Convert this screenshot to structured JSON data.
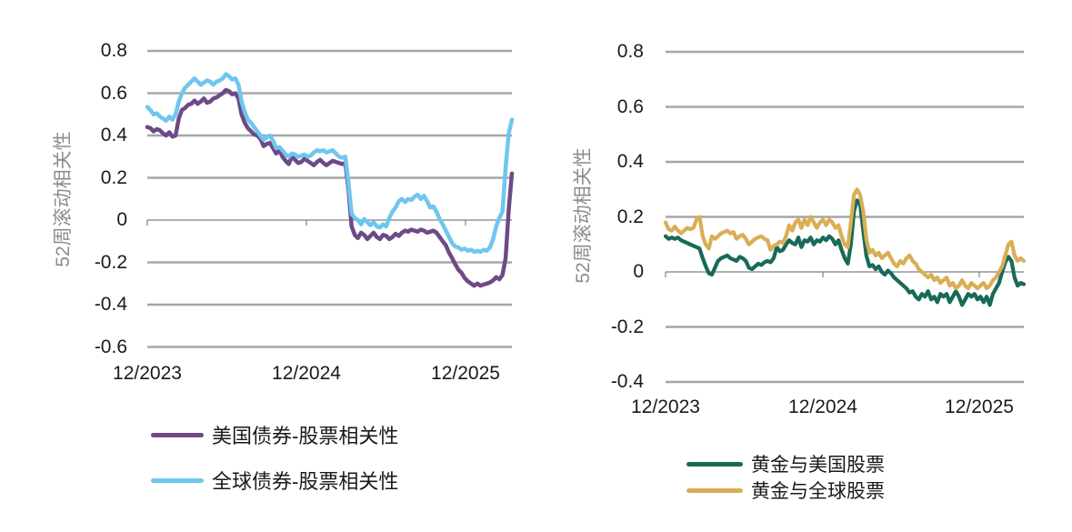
{
  "page": {
    "background": "#ffffff"
  },
  "chart_data": [
    {
      "type": "line",
      "title": "",
      "xlabel": "",
      "ylabel": "52周滚动相关性",
      "x_tick_labels": [
        "12/2023",
        "12/2024",
        "12/2025"
      ],
      "y_tick_labels": [
        "0.8",
        "0.6",
        "0.4",
        "0.2",
        "0",
        "-0.2",
        "-0.4",
        "-0.6"
      ],
      "y_tick_values": [
        0.8,
        0.6,
        0.4,
        0.2,
        0,
        -0.2,
        -0.4,
        -0.6
      ],
      "ylim": [
        -0.7,
        0.9
      ],
      "grid": "horizontal",
      "legend_position": "bottom",
      "grid_color": "#a6a6a6",
      "axis_color": "#7f7f7f",
      "series": [
        {
          "name": "美国债券-股票相关性",
          "color": "#6d4a87",
          "values": [
            0.44,
            0.435,
            0.42,
            0.43,
            0.425,
            0.41,
            0.4,
            0.415,
            0.395,
            0.4,
            0.48,
            0.52,
            0.53,
            0.545,
            0.55,
            0.565,
            0.55,
            0.56,
            0.575,
            0.555,
            0.56,
            0.575,
            0.58,
            0.59,
            0.6,
            0.615,
            0.61,
            0.595,
            0.6,
            0.575,
            0.5,
            0.46,
            0.435,
            0.42,
            0.405,
            0.4,
            0.385,
            0.35,
            0.36,
            0.365,
            0.34,
            0.315,
            0.33,
            0.3,
            0.28,
            0.265,
            0.3,
            0.285,
            0.27,
            0.275,
            0.29,
            0.28,
            0.27,
            0.26,
            0.275,
            0.285,
            0.27,
            0.26,
            0.27,
            0.28,
            0.275,
            0.27,
            0.265,
            0.27,
            0.15,
            -0.03,
            -0.07,
            -0.085,
            -0.06,
            -0.07,
            -0.09,
            -0.075,
            -0.06,
            -0.08,
            -0.09,
            -0.07,
            -0.075,
            -0.09,
            -0.08,
            -0.065,
            -0.075,
            -0.06,
            -0.05,
            -0.055,
            -0.045,
            -0.05,
            -0.055,
            -0.045,
            -0.05,
            -0.06,
            -0.055,
            -0.05,
            -0.06,
            -0.08,
            -0.1,
            -0.12,
            -0.155,
            -0.18,
            -0.21,
            -0.235,
            -0.25,
            -0.275,
            -0.29,
            -0.3,
            -0.31,
            -0.3,
            -0.31,
            -0.305,
            -0.3,
            -0.295,
            -0.285,
            -0.27,
            -0.28,
            -0.26,
            -0.18,
            0.05,
            0.22
          ]
        },
        {
          "name": "全球债券-股票相关性",
          "color": "#6fc6ef",
          "values": [
            0.535,
            0.52,
            0.5,
            0.505,
            0.49,
            0.48,
            0.47,
            0.49,
            0.475,
            0.5,
            0.56,
            0.6,
            0.625,
            0.64,
            0.655,
            0.67,
            0.655,
            0.64,
            0.65,
            0.66,
            0.655,
            0.64,
            0.655,
            0.66,
            0.67,
            0.69,
            0.68,
            0.665,
            0.67,
            0.64,
            0.56,
            0.51,
            0.475,
            0.46,
            0.44,
            0.42,
            0.4,
            0.38,
            0.39,
            0.4,
            0.375,
            0.34,
            0.345,
            0.33,
            0.31,
            0.3,
            0.315,
            0.31,
            0.3,
            0.305,
            0.31,
            0.3,
            0.305,
            0.32,
            0.33,
            0.325,
            0.33,
            0.32,
            0.325,
            0.33,
            0.315,
            0.3,
            0.295,
            0.3,
            0.18,
            0.03,
            0.01,
            0.0,
            -0.02,
            0.005,
            -0.01,
            -0.025,
            -0.01,
            -0.03,
            -0.035,
            -0.02,
            -0.03,
            0.01,
            0.04,
            0.06,
            0.09,
            0.1,
            0.085,
            0.1,
            0.095,
            0.11,
            0.12,
            0.1,
            0.115,
            0.09,
            0.06,
            0.065,
            0.04,
            0.005,
            -0.02,
            -0.05,
            -0.08,
            -0.11,
            -0.125,
            -0.13,
            -0.14,
            -0.135,
            -0.145,
            -0.14,
            -0.15,
            -0.145,
            -0.15,
            -0.14,
            -0.145,
            -0.13,
            -0.09,
            -0.03,
            0.01,
            0.04,
            0.25,
            0.41,
            0.475
          ]
        }
      ]
    },
    {
      "type": "line",
      "title": "",
      "xlabel": "",
      "ylabel": "52周滚动相关性",
      "x_tick_labels": [
        "12/2023",
        "12/2024",
        "12/2025"
      ],
      "y_tick_labels": [
        "0.8",
        "0.6",
        "0.4",
        "0.2",
        "0",
        "-0.2",
        "-0.4"
      ],
      "y_tick_values": [
        0.8,
        0.6,
        0.4,
        0.2,
        0,
        -0.2,
        -0.4
      ],
      "ylim": [
        -0.5,
        0.9
      ],
      "grid": "horizontal",
      "legend_position": "bottom",
      "grid_color": "#a6a6a6",
      "axis_color": "#7f7f7f",
      "series": [
        {
          "name": "黄金与美国股票",
          "color": "#186a58",
          "values": [
            0.13,
            0.12,
            0.125,
            0.12,
            0.125,
            0.115,
            0.11,
            0.105,
            0.1,
            0.095,
            0.09,
            0.085,
            0.05,
            0.02,
            -0.005,
            -0.01,
            0.015,
            0.04,
            0.05,
            0.055,
            0.06,
            0.05,
            0.045,
            0.04,
            0.055,
            0.05,
            0.04,
            0.015,
            0.01,
            0.02,
            0.03,
            0.025,
            0.035,
            0.04,
            0.035,
            0.05,
            0.09,
            0.075,
            0.08,
            0.1,
            0.115,
            0.105,
            0.1,
            0.125,
            0.09,
            0.115,
            0.11,
            0.125,
            0.1,
            0.115,
            0.11,
            0.125,
            0.115,
            0.13,
            0.12,
            0.1,
            0.115,
            0.08,
            0.05,
            0.03,
            0.1,
            0.22,
            0.26,
            0.245,
            0.15,
            0.06,
            0.02,
            0.025,
            0.01,
            0.02,
            0.0,
            -0.01,
            0.005,
            -0.005,
            -0.02,
            -0.03,
            -0.04,
            -0.05,
            -0.06,
            -0.075,
            -0.07,
            -0.09,
            -0.1,
            -0.08,
            -0.09,
            -0.07,
            -0.1,
            -0.09,
            -0.11,
            -0.08,
            -0.09,
            -0.08,
            -0.11,
            -0.09,
            -0.07,
            -0.09,
            -0.12,
            -0.1,
            -0.08,
            -0.09,
            -0.08,
            -0.1,
            -0.09,
            -0.11,
            -0.09,
            -0.12,
            -0.08,
            -0.06,
            -0.04,
            0.0,
            0.035,
            0.055,
            0.04,
            -0.02,
            -0.05,
            -0.04,
            -0.045
          ]
        },
        {
          "name": "黄金与全球股票",
          "color": "#d9ae55",
          "values": [
            0.18,
            0.155,
            0.15,
            0.165,
            0.15,
            0.14,
            0.15,
            0.16,
            0.155,
            0.16,
            0.19,
            0.2,
            0.13,
            0.1,
            0.085,
            0.13,
            0.12,
            0.13,
            0.14,
            0.145,
            0.15,
            0.14,
            0.145,
            0.12,
            0.13,
            0.135,
            0.12,
            0.1,
            0.11,
            0.12,
            0.125,
            0.13,
            0.12,
            0.115,
            0.08,
            0.095,
            0.1,
            0.11,
            0.105,
            0.13,
            0.17,
            0.15,
            0.18,
            0.19,
            0.16,
            0.19,
            0.17,
            0.2,
            0.18,
            0.16,
            0.18,
            0.19,
            0.17,
            0.19,
            0.18,
            0.16,
            0.17,
            0.13,
            0.1,
            0.09,
            0.18,
            0.28,
            0.3,
            0.28,
            0.22,
            0.12,
            0.07,
            0.08,
            0.06,
            0.07,
            0.05,
            0.06,
            0.07,
            0.05,
            0.03,
            0.02,
            0.04,
            0.03,
            0.05,
            0.06,
            0.04,
            0.03,
            0.01,
            0.0,
            -0.01,
            -0.02,
            -0.01,
            -0.03,
            -0.02,
            -0.04,
            -0.03,
            -0.02,
            -0.05,
            -0.04,
            -0.06,
            -0.05,
            -0.03,
            -0.05,
            -0.06,
            -0.04,
            -0.05,
            -0.06,
            -0.05,
            -0.04,
            -0.06,
            -0.05,
            -0.03,
            -0.02,
            0.0,
            0.02,
            0.06,
            0.1,
            0.11,
            0.06,
            0.04,
            0.05,
            0.04
          ]
        }
      ]
    }
  ]
}
